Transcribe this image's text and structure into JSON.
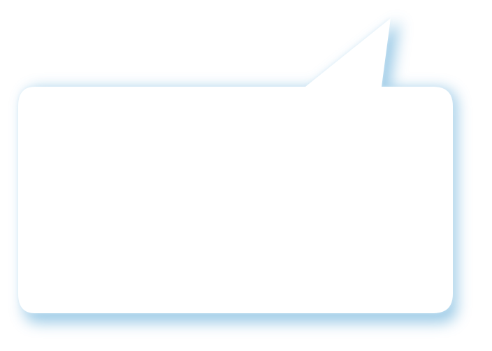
{
  "bubble": {
    "fill_color": "#ffffff",
    "shadow_color": "#8ec3e3",
    "text": ""
  }
}
